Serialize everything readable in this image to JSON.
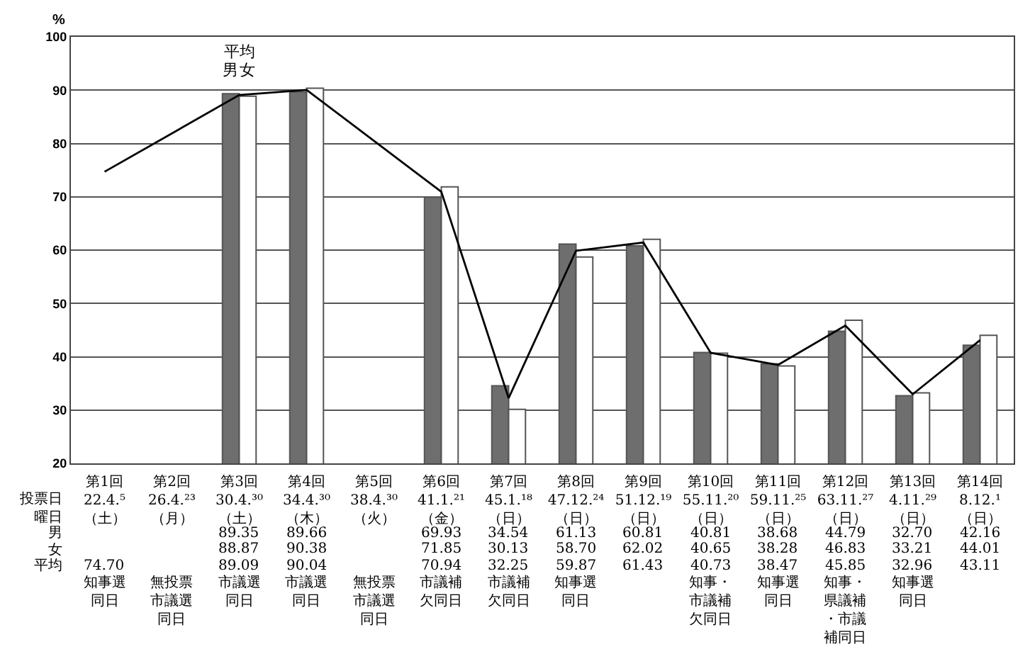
{
  "chart_data": {
    "type": "bar",
    "ylabel": "%",
    "categories": [
      "第1回\n22.4.⁵\n（土）",
      "第2回\n26.4.²³\n（月）",
      "第3回\n30.4.³⁰\n（土）",
      "第4回\n34.4.³⁰\n（木）",
      "第5回\n38.4.³⁰\n（火）",
      "第6回\n41.1.²¹\n（金）",
      "第7回\n45.1.¹⁸\n（日）",
      "第8回\n47.12.²⁴\n（日）",
      "第9回\n51.12.¹⁹\n（日）",
      "第10回\n55.11.²⁰\n（日）",
      "第11回\n59.11.²⁵\n（日）",
      "第12回\n63.11.²⁷\n（日）",
      "第13回\n4.11.²⁹\n（日）",
      "第14回\n8.12.¹\n（日）"
    ],
    "series": [
      {
        "name": "男",
        "color": "#6e6e6e",
        "values": [
          null,
          null,
          89.35,
          89.66,
          null,
          69.93,
          34.54,
          61.13,
          60.81,
          40.81,
          38.68,
          44.79,
          32.7,
          42.16
        ],
        "value_labels": [
          null,
          null,
          "89.35",
          "89.66",
          null,
          "69.93",
          "34.54",
          "61.13",
          "60.81",
          "40.81",
          "38.68",
          "44.79",
          "32.70",
          "42.16"
        ]
      },
      {
        "name": "女",
        "color": "#ffffff",
        "values": [
          null,
          null,
          88.87,
          90.38,
          null,
          71.85,
          30.13,
          58.7,
          62.02,
          40.65,
          38.28,
          46.83,
          33.21,
          44.01
        ],
        "value_labels": [
          null,
          null,
          "88.87",
          "90.38",
          null,
          "71.85",
          "30.13",
          "58.70",
          "62.02",
          "40.65",
          "38.28",
          "46.83",
          "33.21",
          "44.01"
        ]
      },
      {
        "name": "平均",
        "type": "line",
        "color": "#000000",
        "values": [
          74.7,
          null,
          89.09,
          90.04,
          null,
          70.94,
          32.25,
          59.87,
          61.43,
          40.73,
          38.47,
          45.85,
          32.96,
          43.11
        ],
        "value_labels": [
          "74.70",
          null,
          "89.09",
          "90.04",
          null,
          "70.94",
          "32.25",
          "59.87",
          "61.43",
          "40.73",
          "38.47",
          "45.85",
          "32.96",
          "43.11"
        ]
      }
    ],
    "ylim": [
      20,
      100
    ],
    "yticks": [
      20,
      30,
      40,
      50,
      60,
      70,
      80,
      90,
      100
    ],
    "grid": "y",
    "marker": "none",
    "annotations": [
      "投票日",
      "曜日",
      "知事選同日",
      "無投票市議選同日",
      "市議選同日",
      "市議選同日",
      "無投票市議選同日",
      "市議補欠同日",
      "市議補欠同日",
      "知事選同日",
      null,
      "知事・市議補欠同日",
      "知事選同日",
      "知事・県議補・市議補同日",
      "知事選同日",
      null
    ]
  }
}
